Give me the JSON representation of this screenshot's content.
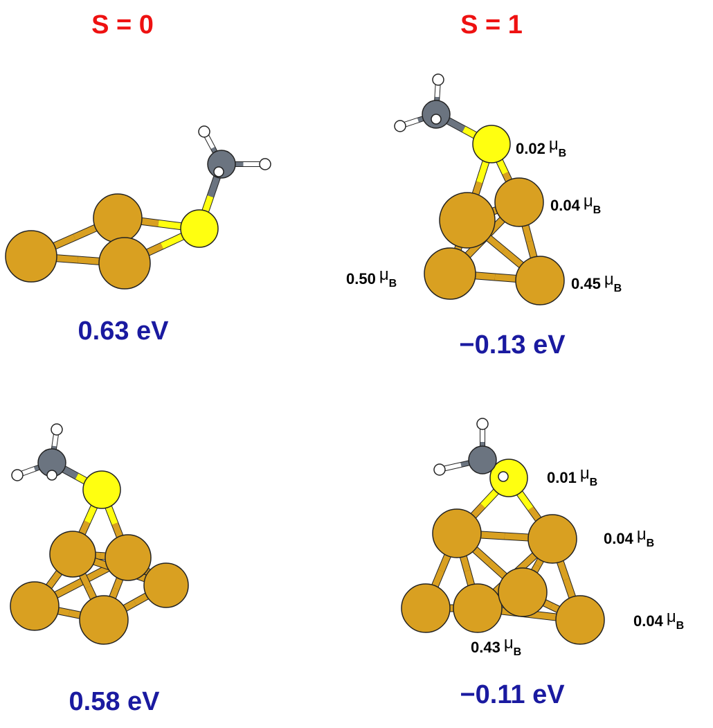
{
  "columns": [
    {
      "title": "S = 0"
    },
    {
      "title": "S = 1"
    }
  ],
  "panels": [
    {
      "energy": "0.63 eV",
      "moments": []
    },
    {
      "energy": "−0.13 eV",
      "moments": [
        {
          "value": "0.02",
          "unit": "μ",
          "subscript": "B"
        },
        {
          "value": "0.04",
          "unit": "μ",
          "subscript": "B"
        },
        {
          "value": "0.50",
          "unit": "μ",
          "subscript": "B"
        },
        {
          "value": "0.45",
          "unit": "μ",
          "subscript": "B"
        }
      ]
    },
    {
      "energy": "0.58 eV",
      "moments": []
    },
    {
      "energy": "−0.11 eV",
      "moments": [
        {
          "value": "0.01",
          "unit": "μ",
          "subscript": "B"
        },
        {
          "value": "0.04",
          "unit": "μ",
          "subscript": "B"
        },
        {
          "value": "0.04",
          "unit": "μ",
          "subscript": "B"
        },
        {
          "value": "0.43",
          "unit": "μ",
          "subscript": "B"
        }
      ]
    }
  ]
}
